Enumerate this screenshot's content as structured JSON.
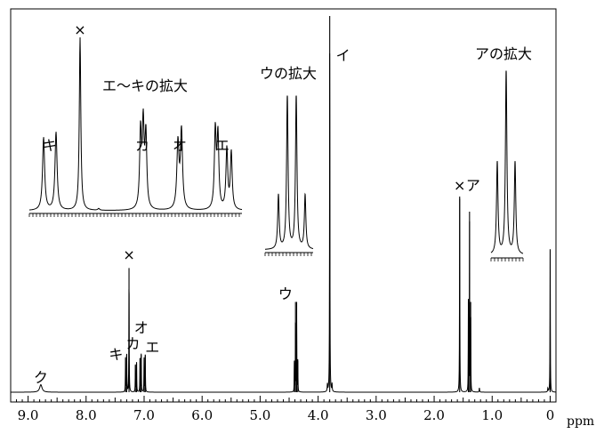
{
  "chart_data": {
    "type": "line",
    "title": "",
    "xlabel": "ppm",
    "ylabel": "",
    "xlim": [
      9.3,
      -0.1
    ],
    "x_axis_reversed": true,
    "grid": false,
    "x_ticks": [
      "9.0",
      "8.0",
      "7.0",
      "6.0",
      "5.0",
      "4.0",
      "3.0",
      "2.0",
      "1.0",
      "0"
    ],
    "series": [
      {
        "peaks": [
          {
            "x": 8.78,
            "height": 0.02,
            "label": "ク"
          },
          {
            "x": 7.3,
            "height": 0.1,
            "label": "キ"
          },
          {
            "x": 7.26,
            "height": 0.33,
            "label": "×"
          },
          {
            "x": 7.13,
            "height": 0.08,
            "label": "カ"
          },
          {
            "x": 7.05,
            "height": 0.1,
            "label": "オ"
          },
          {
            "x": 6.98,
            "height": 0.1,
            "label": "エ"
          },
          {
            "x": 4.38,
            "height": 0.24,
            "label": "ウ"
          },
          {
            "x": 3.8,
            "height": 1.0,
            "label": "イ"
          },
          {
            "x": 1.56,
            "height": 0.52,
            "label": "×"
          },
          {
            "x": 1.39,
            "height": 0.48,
            "label": "ア"
          },
          {
            "x": 0.0,
            "height": 0.38,
            "label": ""
          }
        ]
      }
    ],
    "insets": [
      {
        "label": "エ～キの拡大",
        "peak_labels": [
          "キ",
          "×",
          "カ",
          "オ",
          "エ"
        ]
      },
      {
        "label": "ウの拡大",
        "multiplicity": "quartet",
        "relative_heights": [
          0.35,
          1.0,
          1.0,
          0.35
        ]
      },
      {
        "label": "アの拡大",
        "multiplicity": "triplet",
        "relative_heights": [
          0.5,
          1.0,
          0.5
        ]
      }
    ]
  }
}
